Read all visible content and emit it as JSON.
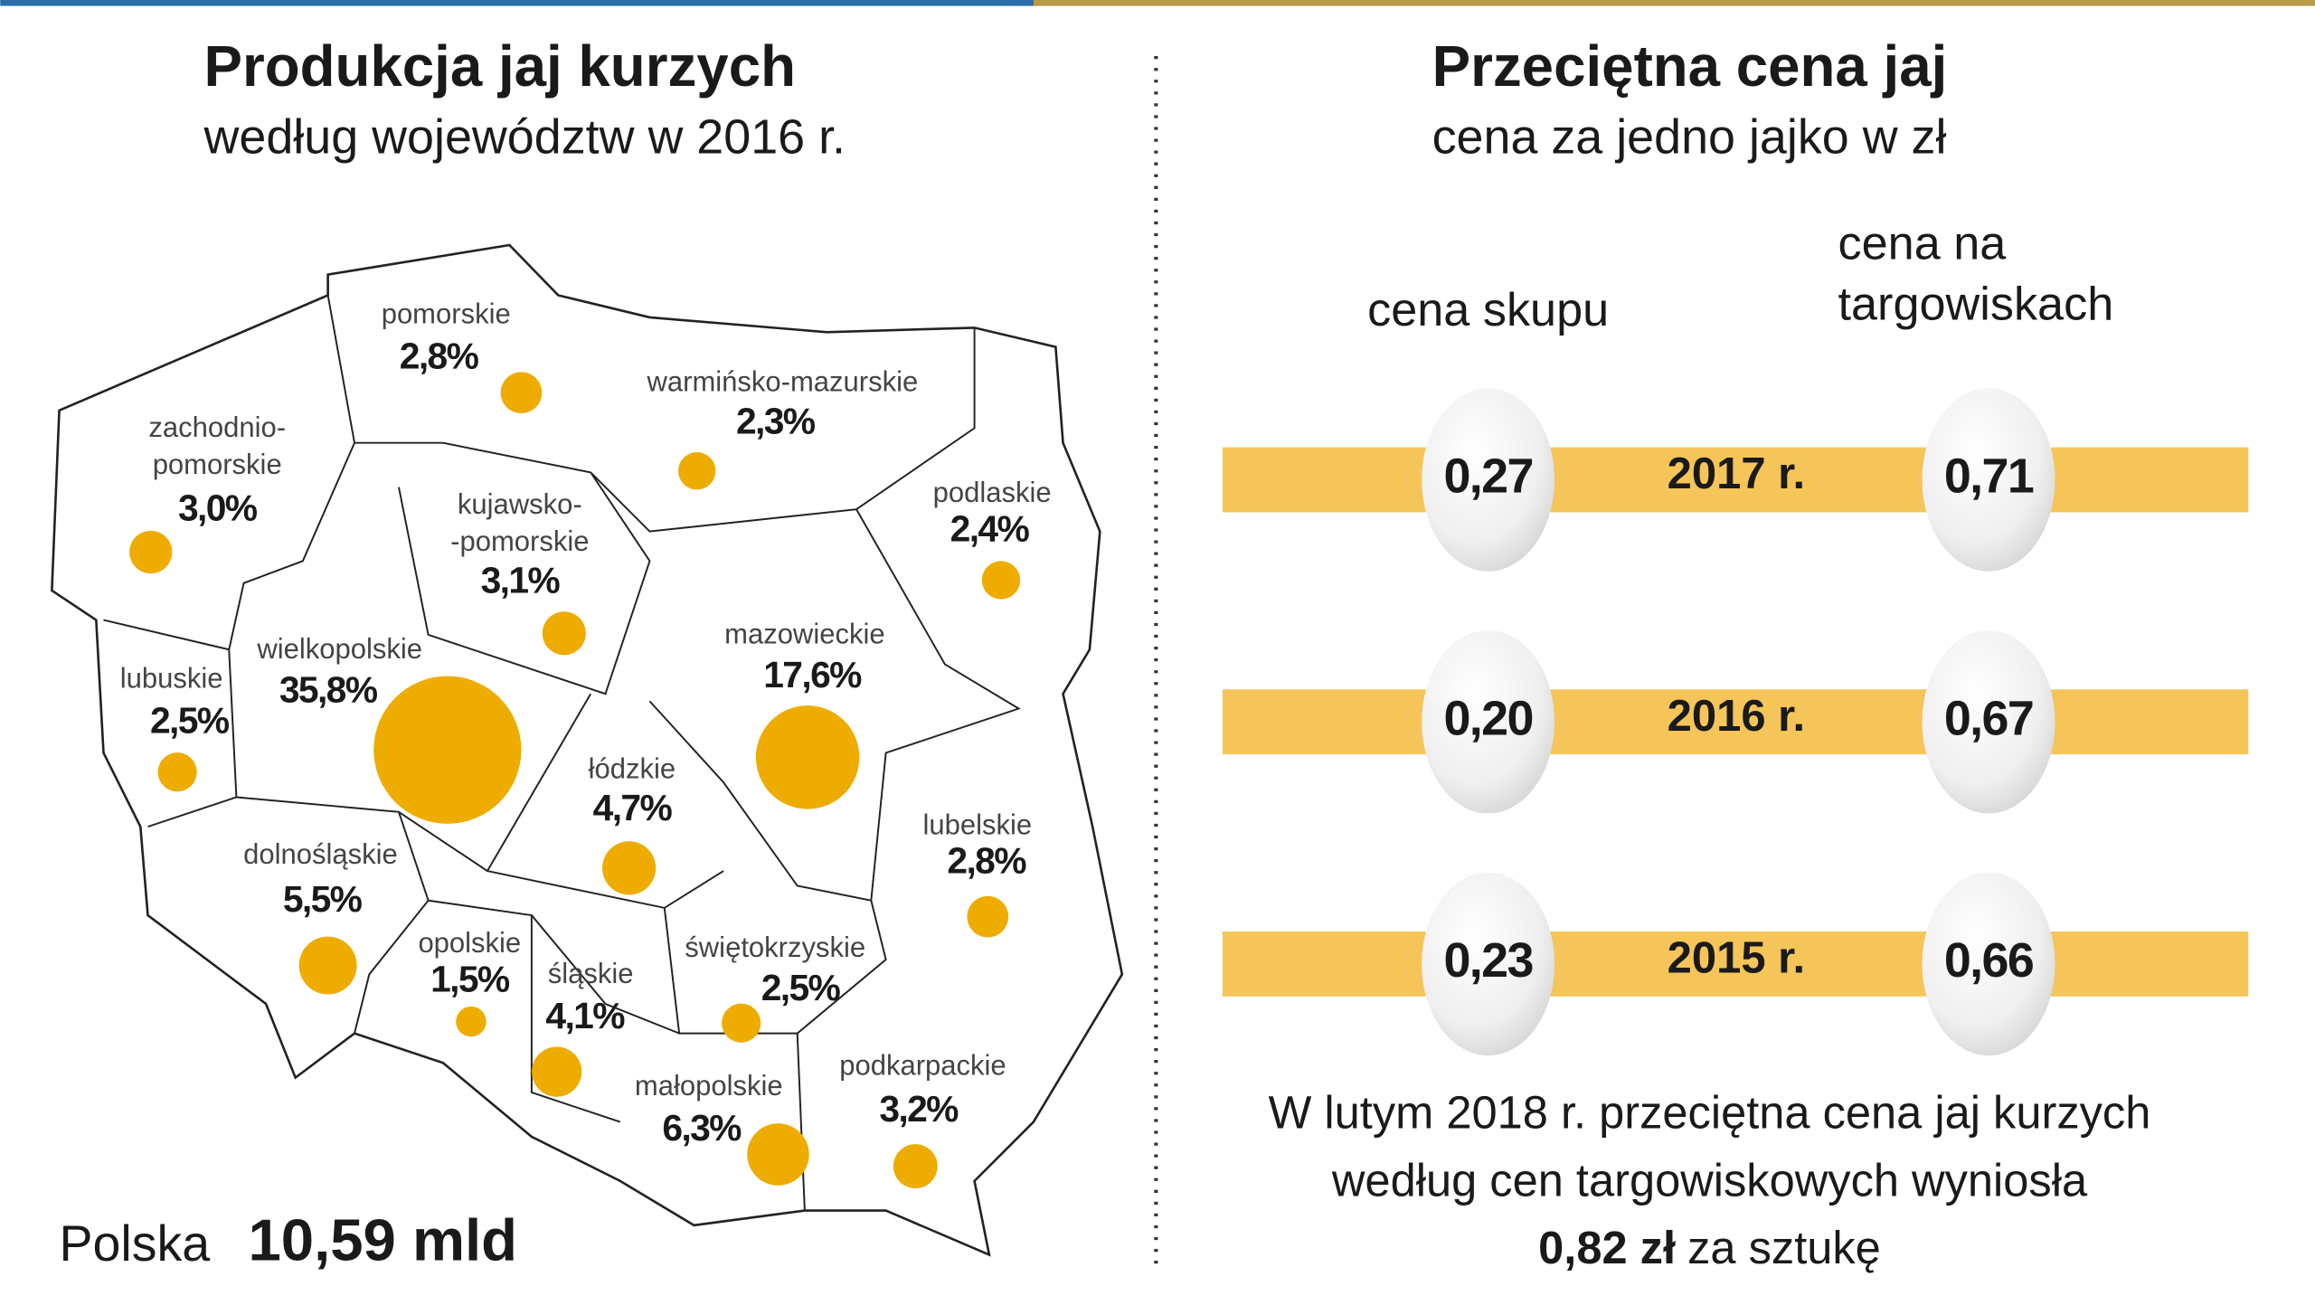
{
  "left": {
    "title": "Produkcja jaj kurzych",
    "subtitle": "według województw w 2016 r.",
    "regions": [
      {
        "name": "pomorskie",
        "value": 2.8,
        "label": "2,8%"
      },
      {
        "name": "warmińsko-mazurskie",
        "value": 2.3,
        "label": "2,3%"
      },
      {
        "name": [
          "zachodnio-",
          "pomorskie"
        ],
        "value": 3.0,
        "label": "3,0%"
      },
      {
        "name": [
          "kujawsko-",
          "-pomorskie"
        ],
        "value": 3.1,
        "label": "3,1%"
      },
      {
        "name": "podlaskie",
        "value": 2.4,
        "label": "2,4%"
      },
      {
        "name": "wielkopolskie",
        "value": 35.8,
        "label": "35,8%"
      },
      {
        "name": "lubuskie",
        "value": 2.5,
        "label": "2,5%"
      },
      {
        "name": "mazowieckie",
        "value": 17.6,
        "label": "17,6%"
      },
      {
        "name": "łódzkie",
        "value": 4.7,
        "label": "4,7%"
      },
      {
        "name": "lubelskie",
        "value": 2.8,
        "label": "2,8%"
      },
      {
        "name": "dolnośląskie",
        "value": 5.5,
        "label": "5,5%"
      },
      {
        "name": "opolskie",
        "value": 1.5,
        "label": "1,5%"
      },
      {
        "name": "śląskie",
        "value": 4.1,
        "label": "4,1%"
      },
      {
        "name": "świętokrzyskie",
        "value": 2.5,
        "label": "2,5%"
      },
      {
        "name": "małopolskie",
        "value": 6.3,
        "label": "6,3%"
      },
      {
        "name": "podkarpackie",
        "value": 3.2,
        "label": "3,2%"
      }
    ],
    "total_label": "Polska",
    "total_value": "10,59 mld"
  },
  "right": {
    "title": "Przeciętna cena jaj",
    "subtitle": "cena za jedno jajko w zł",
    "col1": "cena skupu",
    "col2": [
      "cena na",
      "targowiskach"
    ],
    "rows": [
      {
        "year": "2017 r.",
        "skup": "0,27",
        "targ": "0,71"
      },
      {
        "year": "2016 r.",
        "skup": "0,20",
        "targ": "0,67"
      },
      {
        "year": "2015 r.",
        "skup": "0,23",
        "targ": "0,66"
      }
    ],
    "note": {
      "line1": "W lutym 2018 r. przeciętna cena jaj kurzych",
      "line2": "według cen targowiskowych wyniosła",
      "bold": "0,82 zł",
      "tail": "za sztukę"
    }
  }
}
